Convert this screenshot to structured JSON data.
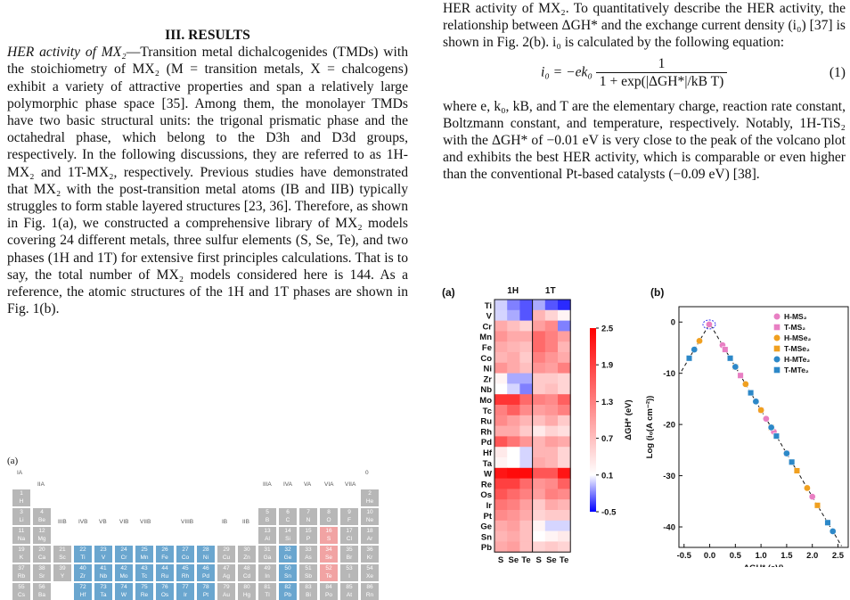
{
  "left_column": {
    "section_heading": "III. RESULTS",
    "para1_lead": "HER activity of MX₂",
    "para1_body": "—Transition metal dichalcogenides (TMDs) with the stoichiometry of MX₂ (M = transition metals, X = chalcogens) exhibit a variety of attractive properties and span a relatively large polymorphic phase space [35]. Among them, the monolayer TMDs have two basic structural units: the trigonal prismatic phase and the octahedral phase, which belong to the D3h and D3d groups, respectively. In the following discussions, they are referred to as 1H-MX₂ and 1T-MX₂, respectively. Previous studies have demonstrated that MX₂ with the post-transition metal atoms (IB and IIB) typically struggles to form stable layered structures [23, 36]. Therefore, as shown in Fig. 1(a), we constructed a comprehensive library of MX₂ models covering 24 different metals, three sulfur elements (S, Se, Te), and two phases (1H and 1T) for extensive first principles calculations. That is to say, the total number of MX₂ models considered here is 144. As a reference, the atomic structures of the 1H and 1T phases are shown in Fig. 1(b).",
    "fig1_label": "(a)"
  },
  "right_column": {
    "para2": "HER activity of MX₂. To quantitatively describe the HER activity, the relationship between ΔGH* and the exchange current density (i₀) [37] is shown in Fig. 2(b). i₀ is calculated by the following equation:",
    "equation_lhs": "i₀ = −ek₀",
    "equation_num": "1",
    "equation_den": "1 + exp(|ΔGH*|/kB T)",
    "equation_number": "(1)",
    "para3": "where e, k₀, kB, and T are the elementary charge, reaction rate constant, Boltzmann constant, and temperature, respectively. Notably, 1H-TiS₂ with the ΔGH* of −0.01 eV is very close to the peak of the volcano plot and exhibits the best HER activity, which is comparable or even higher than the conventional Pt-based catalysts (−0.09 eV) [38]."
  },
  "periodic_table": {
    "groups_top": [
      "IA",
      "0"
    ],
    "groups_row2": [
      "IIA",
      "IIIA",
      "IVA",
      "VA",
      "VIA",
      "VIIA"
    ],
    "groups_row4": [
      "IIIB",
      "IVB",
      "VB",
      "VIB",
      "VIIB",
      "VIIIB",
      "IB",
      "IIB"
    ],
    "rows": [
      [
        [
          "1",
          "H"
        ],
        [
          "2",
          "He"
        ]
      ],
      [
        [
          "3",
          "Li"
        ],
        [
          "4",
          "Be"
        ],
        [
          "5",
          "B"
        ],
        [
          "6",
          "C"
        ],
        [
          "7",
          "N"
        ],
        [
          "8",
          "O"
        ],
        [
          "9",
          "F"
        ],
        [
          "10",
          "Ne"
        ]
      ],
      [
        [
          "11",
          "Na"
        ],
        [
          "12",
          "Mg"
        ],
        [
          "13",
          "Al"
        ],
        [
          "14",
          "Si"
        ],
        [
          "15",
          "P"
        ],
        [
          "16",
          "S"
        ],
        [
          "17",
          "Cl"
        ],
        [
          "18",
          "Ar"
        ]
      ],
      [
        [
          "19",
          "K"
        ],
        [
          "20",
          "Ca"
        ],
        [
          "21",
          "Sc"
        ],
        [
          "22",
          "Ti"
        ],
        [
          "23",
          "V"
        ],
        [
          "24",
          "Cr"
        ],
        [
          "25",
          "Mn"
        ],
        [
          "26",
          "Fe"
        ],
        [
          "27",
          "Co"
        ],
        [
          "28",
          "Ni"
        ],
        [
          "29",
          "Cu"
        ],
        [
          "30",
          "Zn"
        ],
        [
          "31",
          "Ga"
        ],
        [
          "32",
          "Ge"
        ],
        [
          "33",
          "As"
        ],
        [
          "34",
          "Se"
        ],
        [
          "35",
          "Br"
        ],
        [
          "36",
          "Kr"
        ]
      ],
      [
        [
          "37",
          "Rb"
        ],
        [
          "38",
          "Sr"
        ],
        [
          "39",
          "Y"
        ],
        [
          "40",
          "Zr"
        ],
        [
          "41",
          "Nb"
        ],
        [
          "42",
          "Mo"
        ],
        [
          "43",
          "Tc"
        ],
        [
          "44",
          "Ru"
        ],
        [
          "45",
          "Rh"
        ],
        [
          "46",
          "Pd"
        ],
        [
          "47",
          "Ag"
        ],
        [
          "48",
          "Cd"
        ],
        [
          "49",
          "In"
        ],
        [
          "50",
          "Sn"
        ],
        [
          "51",
          "Sb"
        ],
        [
          "52",
          "Te"
        ],
        [
          "53",
          "I"
        ],
        [
          "54",
          "Xe"
        ]
      ],
      [
        [
          "55",
          "Cs"
        ],
        [
          "56",
          "Ba"
        ],
        [
          "72",
          "Hf"
        ],
        [
          "73",
          "Ta"
        ],
        [
          "74",
          "W"
        ],
        [
          "75",
          "Re"
        ],
        [
          "76",
          "Os"
        ],
        [
          "77",
          "Ir"
        ],
        [
          "78",
          "Pt"
        ],
        [
          "79",
          "Au"
        ],
        [
          "80",
          "Hg"
        ],
        [
          "81",
          "Tl"
        ],
        [
          "82",
          "Pb"
        ],
        [
          "83",
          "Bi"
        ],
        [
          "84",
          "Po"
        ],
        [
          "85",
          "At"
        ],
        [
          "86",
          "Rn"
        ]
      ]
    ]
  },
  "chart_data": [
    {
      "type": "heatmap",
      "panel_label": "(a)",
      "column_groups": [
        "1H",
        "1T"
      ],
      "columns": [
        "S",
        "Se",
        "Te",
        "S",
        "Se",
        "Te"
      ],
      "rows": [
        "Ti",
        "V",
        "Cr",
        "Mn",
        "Fe",
        "Co",
        "Ni",
        "Zr",
        "Nb",
        "Mo",
        "Tc",
        "Ru",
        "Rh",
        "Pd",
        "Hf",
        "Ta",
        "W",
        "Re",
        "Os",
        "Ir",
        "Pt",
        "Ge",
        "Sn",
        "Pb"
      ],
      "values": [
        [
          -0.01,
          -0.2,
          -0.3,
          -0.1,
          -0.3,
          -0.4
        ],
        [
          0.0,
          -0.1,
          -0.3,
          0.8,
          0.5,
          0.2
        ],
        [
          0.9,
          0.7,
          0.5,
          1.0,
          1.2,
          -0.2
        ],
        [
          1.1,
          0.9,
          0.9,
          1.5,
          1.3,
          1.0
        ],
        [
          0.9,
          0.8,
          0.7,
          1.5,
          1.3,
          0.8
        ],
        [
          0.8,
          0.9,
          0.6,
          1.3,
          1.1,
          0.9
        ],
        [
          1.1,
          0.9,
          0.7,
          1.1,
          1.0,
          1.3
        ],
        [
          0.2,
          -0.1,
          -0.1,
          0.6,
          0.6,
          0.5
        ],
        [
          0.1,
          0.0,
          -0.2,
          0.6,
          0.7,
          0.5
        ],
        [
          2.0,
          2.0,
          1.5,
          1.3,
          1.2,
          1.6
        ],
        [
          1.3,
          1.6,
          1.2,
          1.0,
          1.1,
          1.3
        ],
        [
          1.2,
          1.0,
          0.8,
          0.7,
          0.9,
          0.6
        ],
        [
          0.9,
          0.9,
          0.6,
          0.3,
          0.5,
          0.4
        ],
        [
          1.7,
          1.4,
          1.1,
          0.8,
          1.0,
          0.9
        ],
        [
          0.3,
          0.1,
          0.0,
          0.8,
          0.8,
          0.5
        ],
        [
          0.2,
          0.1,
          0.0,
          0.9,
          0.8,
          0.5
        ],
        [
          2.3,
          2.4,
          2.4,
          1.7,
          1.7,
          2.3
        ],
        [
          1.9,
          1.9,
          1.5,
          1.1,
          1.2,
          1.6
        ],
        [
          1.7,
          1.5,
          1.3,
          1.0,
          1.3,
          1.2
        ],
        [
          1.4,
          1.3,
          1.0,
          0.6,
          0.9,
          0.8
        ],
        [
          1.2,
          1.1,
          0.9,
          0.5,
          0.6,
          0.6
        ],
        [
          0.9,
          1.0,
          0.7,
          0.2,
          0.0,
          0.0
        ],
        [
          0.8,
          0.9,
          0.7,
          0.1,
          0.2,
          0.3
        ],
        [
          0.9,
          1.0,
          0.7,
          0.5,
          0.6,
          0.5
        ]
      ],
      "colorbar_label": "ΔGH* (eV)",
      "colorbar_ticks": [
        "2.5",
        "1.9",
        "1.3",
        "0.7",
        "0.1",
        "-0.5"
      ],
      "colorbar_range": [
        -0.5,
        2.5
      ],
      "colors": {
        "low": "#0000ff",
        "mid": "#ffffff",
        "high": "#ff0000"
      }
    },
    {
      "type": "scatter",
      "panel_label": "(b)",
      "xlabel": "ΔGH* (eV)",
      "ylabel": "Log (i₀(A cm⁻²))",
      "xlim": [
        -0.6,
        2.7
      ],
      "ylim": [
        -44,
        3
      ],
      "xticks": [
        "-0.5",
        "0.0",
        "0.5",
        "1.0",
        "1.5",
        "2.0",
        "2.5"
      ],
      "yticks": [
        "0",
        "-10",
        "-20",
        "-30",
        "-40"
      ],
      "legend_position": "top-right",
      "series": [
        {
          "name": "H-MS₂",
          "color": "#e87fc3",
          "shape": "circle",
          "x": [
            -0.01,
            0.25,
            0.6,
            0.9,
            1.1,
            1.25,
            2.0
          ]
        },
        {
          "name": "T-MS₂",
          "color": "#e87fc3",
          "shape": "square",
          "x": [
            0.8,
            1.0,
            1.3,
            1.5,
            0.3,
            0.6
          ]
        },
        {
          "name": "H-MSe₂",
          "color": "#f0a020",
          "shape": "circle",
          "x": [
            -0.2,
            0.7,
            1.0,
            1.6,
            1.9,
            2.4
          ]
        },
        {
          "name": "T-MSe₂",
          "color": "#f0a020",
          "shape": "square",
          "x": [
            0.5,
            1.2,
            1.3,
            1.7,
            2.1
          ]
        },
        {
          "name": "H-MTe₂",
          "color": "#2d88c8",
          "shape": "circle",
          "x": [
            -0.3,
            0.5,
            0.9,
            1.2,
            1.5,
            2.4
          ]
        },
        {
          "name": "T-MTe₂",
          "color": "#2d88c8",
          "shape": "square",
          "x": [
            -0.4,
            0.4,
            0.8,
            1.3,
            1.6,
            2.3
          ]
        }
      ]
    }
  ]
}
